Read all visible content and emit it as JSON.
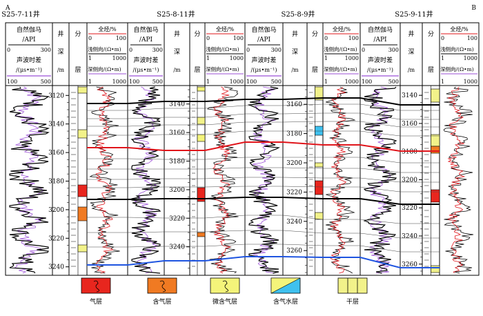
{
  "corner_labels": {
    "left": "A",
    "right": "B"
  },
  "wells": [
    {
      "name": "S25-7-11井",
      "depth_ticks": [
        3120,
        3140,
        3160,
        3180,
        3200,
        3220,
        3240
      ],
      "depth_range": [
        3116,
        3244
      ]
    },
    {
      "name": "S25-8-11井",
      "depth_ticks": [
        3140,
        3160,
        3180,
        3200,
        3220,
        3240
      ],
      "depth_range": [
        3130,
        3258
      ]
    },
    {
      "name": "S25-8-9井",
      "depth_ticks": [
        3160,
        3180,
        3200,
        3220,
        3240,
        3260
      ],
      "depth_range": [
        3150,
        3275
      ]
    },
    {
      "name": "S25-9-11井",
      "depth_ticks": [
        3140,
        3160,
        3180,
        3200,
        3220,
        3240,
        3260
      ],
      "depth_range": [
        3136,
        3266
      ]
    }
  ],
  "headers": {
    "gr_sonic": {
      "line1": "自然伽马",
      "line2": "/API",
      "gr_min": "0",
      "gr_max": "300",
      "line3": "声波时差",
      "line4": "/(μs•m⁻¹)",
      "ac_min": "100",
      "ac_max": "500"
    },
    "depth": {
      "c1": "井",
      "c2": "深",
      "c3": "/m"
    },
    "layer": {
      "c1": "分",
      "c2": "层"
    },
    "resistivity": {
      "title": "全烃/%",
      "t_min": "0",
      "t_max": "100",
      "shallow": "浅侧向/(Ω•m)",
      "s_min": "1",
      "s_max": "1000",
      "deep": "深侧向/(Ω•m)",
      "d_min": "1",
      "d_max": "1000"
    }
  },
  "legend": [
    {
      "label": "气层",
      "color": "#e8261e"
    },
    {
      "label": "含气层",
      "color": "#f07a22"
    },
    {
      "label": "微含气层",
      "color": "#f4f47a"
    },
    {
      "label": "含气水层",
      "color": "#3fc1ef"
    },
    {
      "label": "干层",
      "color": "#f2f28a"
    }
  ],
  "colors": {
    "black": "#000000",
    "red": "#e0141a",
    "blue": "#1e54e0",
    "purple": "#9b4fd6",
    "thin": "#444444"
  }
}
